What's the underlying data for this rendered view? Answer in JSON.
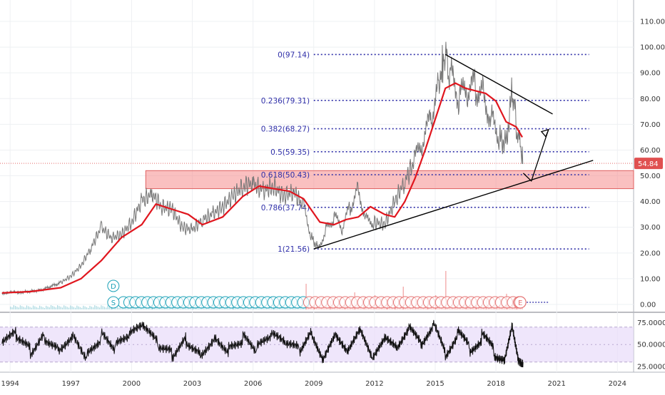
{
  "chart_data": [
    {
      "type": "line",
      "panel": "price",
      "title": "",
      "xlabel": "",
      "ylabel": "",
      "xlim": [
        1993.5,
        2024.8
      ],
      "ylim": [
        -2,
        116
      ],
      "grid": true,
      "log_scale": false,
      "x_ticks": [
        "1994",
        "1997",
        "2000",
        "2003",
        "2006",
        "2009",
        "2012",
        "2015",
        "2018",
        "2021",
        "2024"
      ],
      "y_ticks": [
        "0.00",
        "10.00",
        "20.00",
        "30.00",
        "40.00",
        "50.00",
        "60.00",
        "70.00",
        "80.00",
        "90.00",
        "100.00",
        "110.00"
      ],
      "last_price_label": "54.84",
      "series": [
        {
          "role": "price",
          "x": [
            1993.6,
            1994.5,
            1995.5,
            1996.5,
            1997.0,
            1997.5,
            1998.0,
            1998.5,
            1999.0,
            1999.5,
            2000.0,
            2000.5,
            2001.0,
            2001.5,
            2002.0,
            2002.5,
            2003.0,
            2003.5,
            2004.0,
            2004.5,
            2005.0,
            2005.5,
            2006.0,
            2006.5,
            2007.0,
            2007.5,
            2008.0,
            2008.5,
            2008.9,
            2009.2,
            2009.6,
            2010.0,
            2010.4,
            2010.8,
            2011.2,
            2011.6,
            2012.0,
            2012.5,
            2013.0,
            2013.5,
            2014.0,
            2014.4,
            2014.8,
            2015.2,
            2015.45,
            2015.8,
            2016.2,
            2016.6,
            2017.0,
            2017.4,
            2017.8,
            2018.2,
            2018.5,
            2018.8,
            2019.0,
            2019.2,
            2019.35
          ],
          "values": [
            4.5,
            4.7,
            5.5,
            8.5,
            11,
            15,
            22,
            30,
            26,
            27,
            32,
            40,
            43,
            38,
            37,
            30,
            29,
            33,
            35,
            38,
            42,
            46,
            47,
            44,
            46,
            42,
            44,
            38,
            26,
            22,
            29,
            34,
            29,
            38,
            45,
            33,
            32,
            31,
            40,
            48,
            56,
            62,
            73,
            85,
            97,
            88,
            80,
            82,
            85,
            82,
            72,
            65,
            62,
            83,
            70,
            62,
            54.84
          ]
        },
        {
          "role": "moving-average",
          "x": [
            1993.6,
            1995.0,
            1996.5,
            1997.5,
            1998.5,
            1999.5,
            2000.5,
            2001.2,
            2002.0,
            2002.8,
            2003.5,
            2004.5,
            2005.5,
            2006.3,
            2007.0,
            2007.8,
            2008.5,
            2009.3,
            2010.0,
            2010.6,
            2011.2,
            2011.8,
            2012.5,
            2013.0,
            2013.5,
            2014.0,
            2014.5,
            2015.0,
            2015.5,
            2016.0,
            2016.5,
            2017.0,
            2017.5,
            2018.0,
            2018.5,
            2019.0,
            2019.3
          ],
          "values": [
            4.5,
            5,
            6.5,
            10,
            17,
            26,
            31,
            39,
            37,
            35,
            31,
            34,
            42,
            46,
            45,
            44,
            41,
            32,
            31,
            33,
            34,
            38,
            35,
            34,
            40,
            49,
            60,
            72,
            84,
            86,
            84,
            83,
            82,
            79,
            71,
            69,
            65
          ]
        }
      ],
      "fibonacci_levels": [
        {
          "label": "0(97.14)",
          "value": 97.14
        },
        {
          "label": "0.236(79.31)",
          "value": 79.31
        },
        {
          "label": "0.382(68.27)",
          "value": 68.27
        },
        {
          "label": "0.5(59.35)",
          "value": 59.35
        },
        {
          "label": "0.618(50.43)",
          "value": 50.43
        },
        {
          "label": "0.786(37.74)",
          "value": 37.74
        },
        {
          "label": "1(21.56)",
          "value": 21.56
        }
      ],
      "resistance_band": [
        45,
        52
      ],
      "resistance_line": [
        [
          2015.5,
          97.14
        ],
        [
          2020.8,
          74
        ]
      ],
      "support_line": [
        [
          2009.0,
          21.56
        ],
        [
          2022.8,
          56
        ]
      ],
      "projection_path": [
        [
          2019.35,
          51
        ],
        [
          2019.75,
          48
        ],
        [
          2020.6,
          68
        ]
      ],
      "last_price_line": 54.84,
      "event_markers": {
        "dividend_label": "D",
        "split_label": "S",
        "earnings_label": "E",
        "dividend_x": 1999.1,
        "split_x": 1999.1,
        "earnings_x": 2019.2,
        "series_start": 1999.6,
        "series_split": 2008.6,
        "series_end": 2019.3,
        "colors": {
          "past": "#1ba1b7",
          "recent": "#e57373"
        }
      },
      "volume": {
        "x": [
          1999.0,
          2000.0,
          2001.0,
          2002.0,
          2003.0,
          2004.0,
          2005.0,
          2006.0,
          2007.0,
          2008.0,
          2008.6,
          2009.0,
          2009.8,
          2010.5,
          2011.0,
          2011.5,
          2012.0,
          2012.6,
          2013.0,
          2013.4,
          2014.0,
          2014.6,
          2015.0,
          2015.5,
          2016.0,
          2016.5,
          2017.0,
          2017.5,
          2018.0,
          2018.5,
          2019.0
        ],
        "values": [
          3,
          3,
          3,
          3,
          4,
          4,
          5,
          5,
          6,
          7,
          18,
          8,
          6,
          7,
          12,
          9,
          10,
          7,
          8,
          16,
          8,
          7,
          10,
          27,
          8,
          9,
          7,
          8,
          9,
          11,
          7
        ]
      },
      "colors": {
        "price": "#777777",
        "ma": "#e0161e",
        "fib": "#2e2ea8",
        "band": "#f58c8c",
        "trend": "#000000",
        "last_price": "#e05050"
      }
    },
    {
      "type": "line",
      "panel": "oscillator",
      "title": "",
      "xlabel": "",
      "ylabel": "",
      "ylim": [
        20,
        82
      ],
      "band": [
        30,
        70
      ],
      "y_ticks": [
        "25.0000",
        "50.0000",
        "75.0000"
      ],
      "series": [
        {
          "role": "rsi",
          "x": [
            1993.6,
            1994.3,
            1995.0,
            1995.7,
            1996.4,
            1997.1,
            1997.8,
            1998.5,
            1999.2,
            1999.9,
            2000.6,
            2001.3,
            2002.0,
            2002.7,
            2003.4,
            2004.1,
            2004.8,
            2005.5,
            2006.2,
            2006.9,
            2007.6,
            2008.3,
            2008.9,
            2009.5,
            2010.1,
            2010.7,
            2011.3,
            2011.9,
            2012.5,
            2013.1,
            2013.7,
            2014.3,
            2014.9,
            2015.5,
            2016.1,
            2016.7,
            2017.3,
            2017.9,
            2018.4,
            2018.8,
            2019.1,
            2019.35
          ],
          "values": [
            48,
            58,
            42,
            62,
            50,
            66,
            40,
            60,
            44,
            56,
            66,
            46,
            38,
            58,
            44,
            63,
            48,
            58,
            42,
            56,
            46,
            40,
            60,
            36,
            58,
            46,
            64,
            38,
            54,
            50,
            66,
            54,
            70,
            42,
            60,
            48,
            56,
            44,
            36,
            72,
            40,
            32
          ]
        }
      ],
      "colors": {
        "line": "#111111",
        "band_fill": "#e8dcfa",
        "band_border": "#b8a8d0"
      }
    }
  ]
}
